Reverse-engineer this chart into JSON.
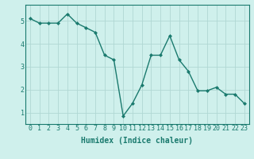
{
  "x": [
    0,
    1,
    2,
    3,
    4,
    5,
    6,
    7,
    8,
    9,
    10,
    11,
    12,
    13,
    14,
    15,
    16,
    17,
    18,
    19,
    20,
    21,
    22,
    23
  ],
  "y": [
    5.1,
    4.9,
    4.9,
    4.9,
    5.3,
    4.9,
    4.7,
    4.5,
    3.5,
    3.3,
    0.85,
    1.4,
    2.2,
    3.5,
    3.5,
    4.35,
    3.3,
    2.8,
    1.95,
    1.95,
    2.1,
    1.8,
    1.8,
    1.4
  ],
  "line_color": "#1a7a6e",
  "marker": "D",
  "marker_size": 2,
  "bg_color": "#cff0ec",
  "grid_color": "#b0d8d4",
  "xlabel": "Humidex (Indice chaleur)",
  "xlabel_fontsize": 7,
  "yticks": [
    1,
    2,
    3,
    4,
    5
  ],
  "xticks": [
    0,
    1,
    2,
    3,
    4,
    5,
    6,
    7,
    8,
    9,
    10,
    11,
    12,
    13,
    14,
    15,
    16,
    17,
    18,
    19,
    20,
    21,
    22,
    23
  ],
  "ylim": [
    0.5,
    5.7
  ],
  "xlim": [
    -0.5,
    23.5
  ],
  "tick_fontsize": 6,
  "line_width": 1.0
}
